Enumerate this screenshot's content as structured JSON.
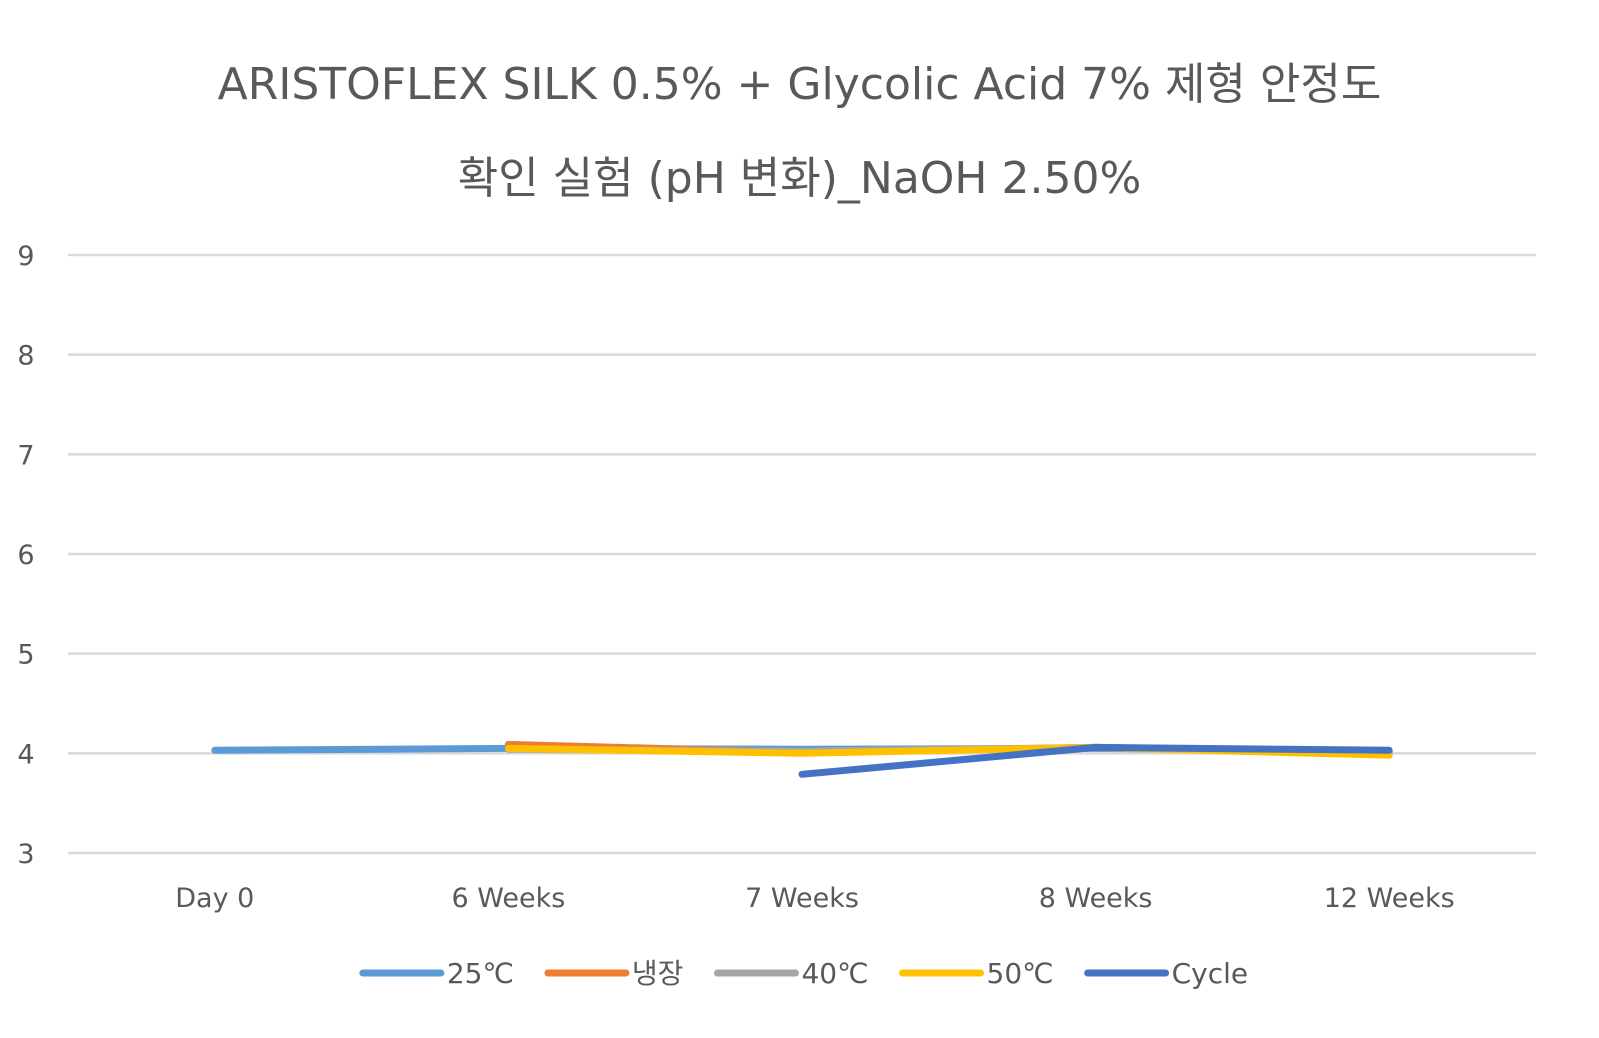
{
  "chart_data": {
    "type": "line",
    "title_lines": [
      "ARISTOFLEX SILK 0.5% + Glycolic Acid 7% 제형 안정도",
      "확인 실험 (pH 변화)_NaOH 2.50%"
    ],
    "categories": [
      "Day 0",
      "6 Weeks",
      "7 Weeks",
      "8 Weeks",
      "12 Weeks"
    ],
    "ylim": [
      3,
      9
    ],
    "yticks": [
      "9",
      "8",
      "7",
      "6",
      "5",
      "4",
      "3"
    ],
    "grid": true,
    "legend_position": "bottom",
    "series": [
      {
        "name": "25℃",
        "color": "#5B9BD5",
        "values": [
          4.03,
          4.05,
          4.04,
          4.05,
          4.02
        ]
      },
      {
        "name": "냉장",
        "color": "#ED7D31",
        "values": [
          null,
          4.09,
          4.01,
          4.06,
          3.99
        ]
      },
      {
        "name": "40℃",
        "color": "#A5A5A5",
        "values": [
          null,
          4.04,
          4.02,
          4.06,
          4.0
        ]
      },
      {
        "name": "50℃",
        "color": "#FFC000",
        "values": [
          null,
          4.05,
          4.0,
          4.06,
          3.98
        ]
      },
      {
        "name": "Cycle",
        "color": "#4472C4",
        "values": [
          null,
          null,
          3.79,
          4.06,
          4.03
        ]
      }
    ]
  }
}
